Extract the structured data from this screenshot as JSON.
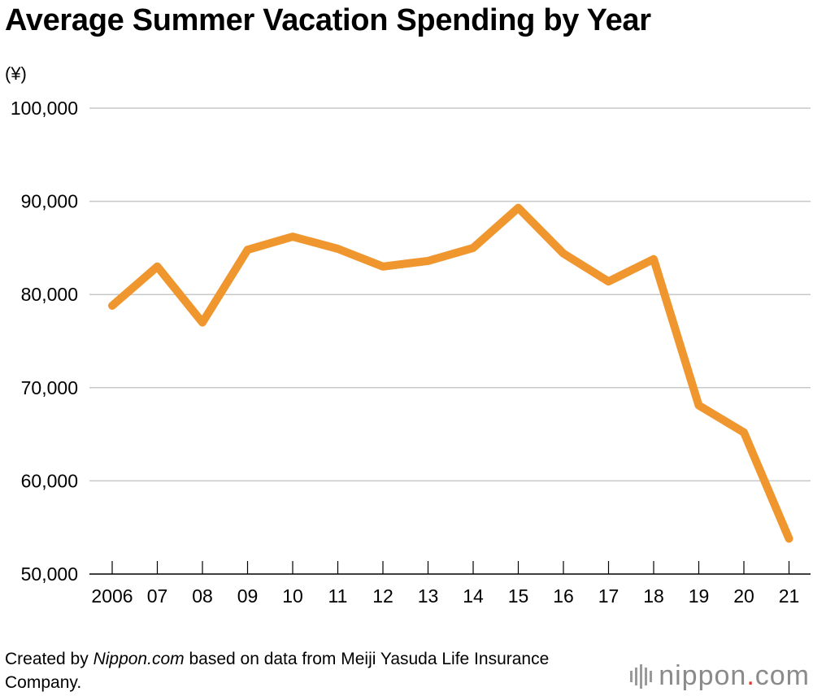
{
  "chart_data": {
    "type": "line",
    "title": "Average Summer Vacation Spending by Year",
    "ylabel": "(¥)",
    "xlabel": "",
    "x": [
      "2006",
      "07",
      "08",
      "09",
      "10",
      "11",
      "12",
      "13",
      "14",
      "15",
      "16",
      "17",
      "18",
      "19",
      "20",
      "21"
    ],
    "series": [
      {
        "values": [
          78800,
          83000,
          77000,
          84800,
          86200,
          84900,
          83000,
          83600,
          85000,
          89300,
          84400,
          81400,
          83800,
          68100,
          65200,
          53800
        ]
      }
    ],
    "ylim": [
      50000,
      100000
    ],
    "yticks": [
      50000,
      60000,
      70000,
      80000,
      90000,
      100000
    ],
    "ytick_labels": [
      "50,000",
      "60,000",
      "70,000",
      "80,000",
      "90,000",
      "100,000"
    ],
    "grid": true,
    "line_color": "#F0962E",
    "grid_color": "#C8C8C8"
  },
  "source": {
    "prefix": "Created by ",
    "site": "Nippon.com",
    "suffix": " based on data from Meiji Yasuda Life Insurance Company."
  },
  "brand": {
    "name_left": "nippon",
    "dot": ".",
    "name_right": "com"
  }
}
